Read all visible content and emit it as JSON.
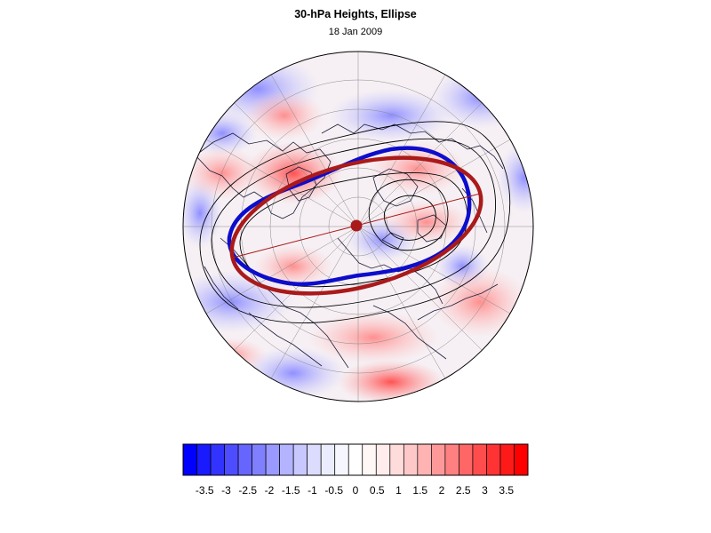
{
  "figure": {
    "title": "30-hPa Heights, Ellipse",
    "subtitle": "18 Jan 2009"
  },
  "map": {
    "projection": "north-polar-stereographic",
    "anomaly_field": "red-blue shading",
    "height_contours": "black lines",
    "vortex_edge": "blue contour",
    "fitted_ellipse": "red ellipse with center dot and major axis",
    "colors": {
      "ellipse": "#aa1a1a",
      "vortex_edge": "#0d0dcc",
      "contour": "#000000",
      "coast": "#1e1e3c"
    }
  },
  "colorbar": {
    "tick_labels": [
      "-3.5",
      "-3",
      "-2.5",
      "-2",
      "-1.5",
      "-1",
      "-0.5",
      "0",
      "0.5",
      "1",
      "1.5",
      "2",
      "2.5",
      "3",
      "3.5"
    ],
    "tick_values": [
      -3.5,
      -3,
      -2.5,
      -2,
      -1.5,
      -1,
      -0.5,
      0,
      0.5,
      1,
      1.5,
      2,
      2.5,
      3,
      3.5
    ],
    "range": [
      -4,
      4
    ],
    "colors": [
      "#0000ff",
      "#1a1aff",
      "#3333ff",
      "#4d4dff",
      "#6666ff",
      "#8080ff",
      "#9999ff",
      "#b3b3ff",
      "#c8c8ff",
      "#dcdcff",
      "#ececff",
      "#f6f6ff",
      "#ffffff",
      "#fff6f6",
      "#ffecec",
      "#ffdcdc",
      "#ffc8c8",
      "#ffb3b3",
      "#ff9999",
      "#ff8080",
      "#ff6666",
      "#ff4d4d",
      "#ff3333",
      "#ff1a1a",
      "#ff0000"
    ]
  }
}
